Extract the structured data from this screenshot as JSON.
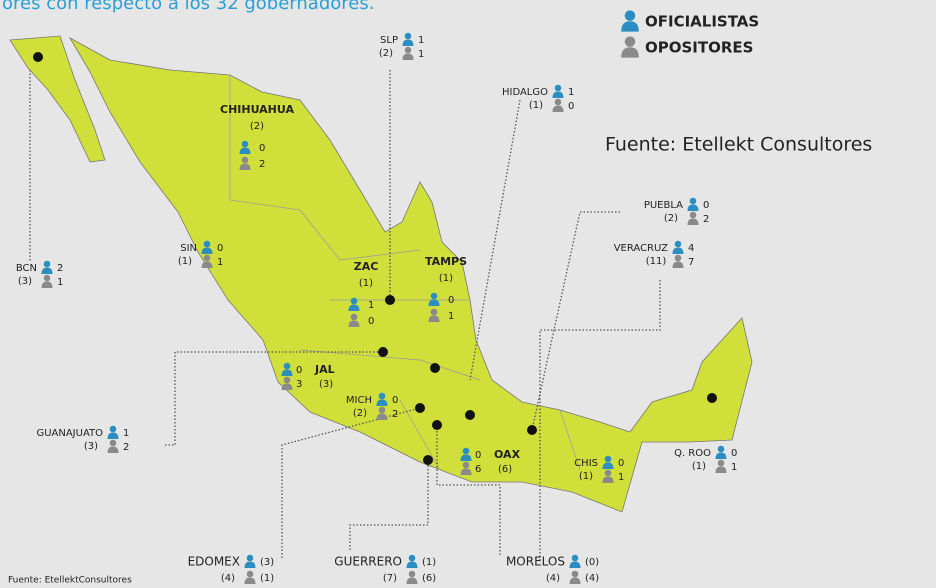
{
  "header": {
    "title": "ores con respecto a los 32 gobernadores."
  },
  "legend": {
    "oficialistas": "OFICIALISTAS",
    "opositores": "OPOSITORES"
  },
  "source": "Fuente: Etellekt Consultores",
  "footnote": "Fuente: EtellektConsultores",
  "states": [
    {
      "name": "SLP",
      "total": "(2)",
      "oficialistas": "1",
      "opositores": "1"
    },
    {
      "name": "HIDALGO",
      "total": "(1)",
      "oficialistas": "1",
      "opositores": "0"
    },
    {
      "name": "CHIHUAHUA",
      "total": "(2)",
      "oficialistas": "0",
      "opositores": "2"
    },
    {
      "name": "PUEBLA",
      "total": "(2)",
      "oficialistas": "0",
      "opositores": "2"
    },
    {
      "name": "VERACRUZ",
      "total": "(11)",
      "oficialistas": "4",
      "opositores": "7"
    },
    {
      "name": "SIN",
      "total": "(1)",
      "oficialistas": "0",
      "opositores": "1"
    },
    {
      "name": "BCN",
      "total": "(3)",
      "oficialistas": "2",
      "opositores": "1"
    },
    {
      "name": "ZAC",
      "total": "(1)",
      "oficialistas": "1",
      "opositores": "0"
    },
    {
      "name": "TAMPS",
      "total": "(1)",
      "oficialistas": "0",
      "opositores": "1"
    },
    {
      "name": "JAL",
      "total": "(3)",
      "oficialistas": "0",
      "opositores": "3"
    },
    {
      "name": "MICH",
      "total": "(2)",
      "oficialistas": "0",
      "opositores": "2"
    },
    {
      "name": "GUANAJUATO",
      "total": "(3)",
      "oficialistas": "1",
      "opositores": "2"
    },
    {
      "name": "OAX",
      "total": "(6)",
      "oficialistas": "0",
      "opositores": "6"
    },
    {
      "name": "CHIS",
      "total": "(1)",
      "oficialistas": "0",
      "opositores": "1"
    },
    {
      "name": "Q. ROO",
      "total": "(1)",
      "oficialistas": "0",
      "opositores": "1"
    },
    {
      "name": "EDOMEX",
      "total": "(4)",
      "oficialistas": "(3)",
      "opositores": "(1)"
    },
    {
      "name": "GUERRERO",
      "total": "(7)",
      "oficialistas": "(1)",
      "opositores": "(6)"
    },
    {
      "name": "MORELOS",
      "total": "(4)",
      "oficialistas": "(0)",
      "opositores": "(4)"
    }
  ]
}
